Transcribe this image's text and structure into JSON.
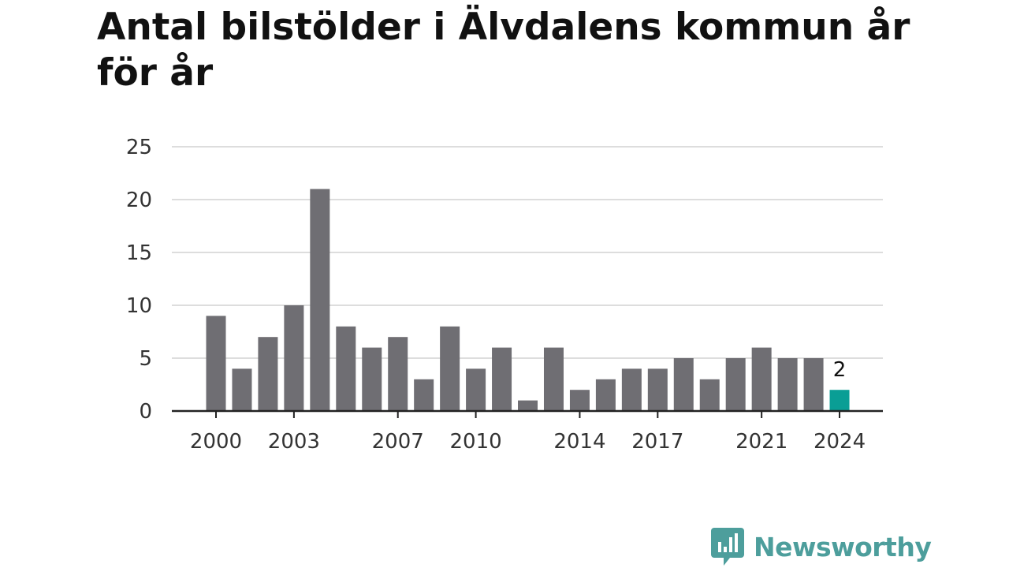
{
  "title": "Antal bilstölder i Älvdalens kommun år för år",
  "brand": {
    "name": "Newsworthy",
    "icon": "newsworthy-logo-icon",
    "color": "#4d9e9c"
  },
  "colors": {
    "bar": "#6f6e73",
    "highlight": "#0a9e95",
    "grid": "#dddddd",
    "axis": "#222222"
  },
  "chart_data": {
    "type": "bar",
    "categories": [
      2000,
      2001,
      2002,
      2003,
      2004,
      2005,
      2006,
      2007,
      2008,
      2009,
      2010,
      2011,
      2012,
      2013,
      2014,
      2015,
      2016,
      2017,
      2018,
      2019,
      2020,
      2021,
      2022,
      2023,
      2024
    ],
    "values": [
      9,
      4,
      7,
      10,
      21,
      8,
      6,
      7,
      3,
      8,
      4,
      6,
      1,
      6,
      2,
      3,
      4,
      4,
      5,
      3,
      5,
      6,
      5,
      5,
      2
    ],
    "x_tick_labels": [
      "2000",
      "2003",
      "2007",
      "2010",
      "2014",
      "2017",
      "2021",
      "2024"
    ],
    "y_ticks": [
      0,
      5,
      10,
      15,
      20,
      25
    ],
    "ylim": [
      0,
      25
    ],
    "grid": true,
    "highlight": {
      "category": 2024,
      "label": "2"
    }
  }
}
